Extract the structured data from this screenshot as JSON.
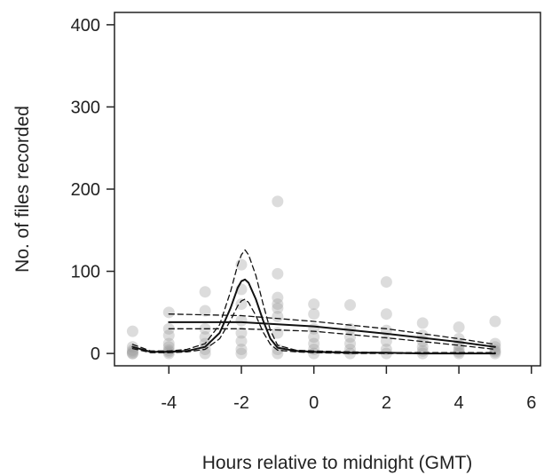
{
  "chart_data": {
    "type": "scatter",
    "title": "",
    "xlabel": "Hours relative to midnight (GMT)",
    "ylabel": "No. of files recorded",
    "xlim": [
      -5.5,
      6.25
    ],
    "ylim": [
      -15,
      415
    ],
    "xticks": [
      -4,
      -2,
      0,
      2,
      4,
      6
    ],
    "yticks": [
      0,
      100,
      200,
      300,
      400
    ],
    "xtick_labels": [
      "-4",
      "-2",
      "0",
      "2",
      "4",
      "6"
    ],
    "ytick_labels": [
      "0",
      "100",
      "200",
      "300",
      "400"
    ],
    "grid": false,
    "legend": "none",
    "colors": {
      "points": "#9a9a9a",
      "lines": "#111111"
    },
    "series": [
      {
        "kind": "points",
        "x": [
          -5,
          -5,
          -5,
          -5,
          -5,
          -5,
          -4,
          -4,
          -4,
          -4,
          -4,
          -4,
          -4,
          -4,
          -3,
          -3,
          -3,
          -3,
          -3,
          -3,
          -3,
          -2,
          -2,
          -2,
          -2,
          -2,
          -2,
          -2,
          -2,
          -1,
          -1,
          -1,
          -1,
          -1,
          -1,
          -1,
          -1,
          -1,
          0,
          0,
          0,
          0,
          0,
          0,
          0,
          1,
          1,
          1,
          1,
          1,
          1,
          2,
          2,
          2,
          2,
          2,
          2,
          3,
          3,
          3,
          3,
          3,
          3,
          4,
          4,
          4,
          4,
          4,
          4,
          5,
          5,
          5,
          5,
          5,
          5
        ],
        "y": [
          27,
          8,
          4,
          2,
          0,
          0,
          50,
          30,
          22,
          12,
          8,
          4,
          2,
          0,
          75,
          52,
          30,
          20,
          12,
          5,
          0,
          108,
          78,
          60,
          40,
          25,
          15,
          5,
          0,
          185,
          97,
          68,
          60,
          55,
          45,
          25,
          5,
          0,
          60,
          48,
          30,
          20,
          12,
          5,
          0,
          59,
          30,
          20,
          12,
          5,
          0,
          87,
          48,
          28,
          15,
          5,
          0,
          37,
          22,
          15,
          8,
          3,
          0,
          32,
          18,
          10,
          5,
          2,
          0,
          39,
          12,
          8,
          4,
          2,
          0
        ]
      },
      {
        "kind": "smooth-fit",
        "x": [
          -5,
          -4.5,
          -4,
          -3.5,
          -3,
          -2.6,
          -2.3,
          -2.1,
          -2,
          -1.9,
          -1.8,
          -1.6,
          -1.4,
          -1.2,
          -1,
          -0.5,
          0,
          1,
          2,
          3,
          4,
          5
        ],
        "y": [
          8,
          2,
          2,
          3,
          8,
          25,
          55,
          80,
          88,
          90,
          86,
          66,
          40,
          18,
          7,
          3,
          2,
          1,
          1,
          0,
          0,
          0
        ]
      },
      {
        "kind": "smooth-fit-upper",
        "x": [
          -5,
          -4.5,
          -4,
          -3.5,
          -3,
          -2.6,
          -2.3,
          -2.1,
          -2,
          -1.9,
          -1.8,
          -1.6,
          -1.4,
          -1.2,
          -1,
          -0.5,
          0,
          1,
          2,
          3,
          4,
          5
        ],
        "y": [
          11,
          3,
          3,
          5,
          12,
          35,
          75,
          108,
          120,
          126,
          120,
          95,
          60,
          28,
          10,
          4,
          3,
          2,
          1,
          1,
          1,
          1
        ]
      },
      {
        "kind": "smooth-fit-lower",
        "x": [
          -5,
          -4.5,
          -4,
          -3.5,
          -3,
          -2.6,
          -2.3,
          -2.1,
          -2,
          -1.9,
          -1.8,
          -1.6,
          -1.4,
          -1.2,
          -1,
          -0.5,
          0,
          1,
          2,
          3,
          4,
          5
        ],
        "y": [
          6,
          1,
          1,
          2,
          5,
          18,
          40,
          58,
          64,
          66,
          62,
          46,
          26,
          11,
          4,
          2,
          1,
          0,
          0,
          0,
          0,
          0
        ]
      },
      {
        "kind": "trend",
        "x": [
          -4,
          -2,
          0,
          2,
          4,
          5
        ],
        "y": [
          38,
          38,
          33,
          24,
          14,
          8
        ]
      },
      {
        "kind": "trend-upper",
        "x": [
          -4,
          -2,
          0,
          2,
          4,
          5
        ],
        "y": [
          48,
          46,
          39,
          30,
          18,
          11
        ]
      },
      {
        "kind": "trend-lower",
        "x": [
          -4,
          -2,
          0,
          2,
          4,
          5
        ],
        "y": [
          30,
          30,
          27,
          19,
          10,
          5
        ]
      }
    ]
  }
}
